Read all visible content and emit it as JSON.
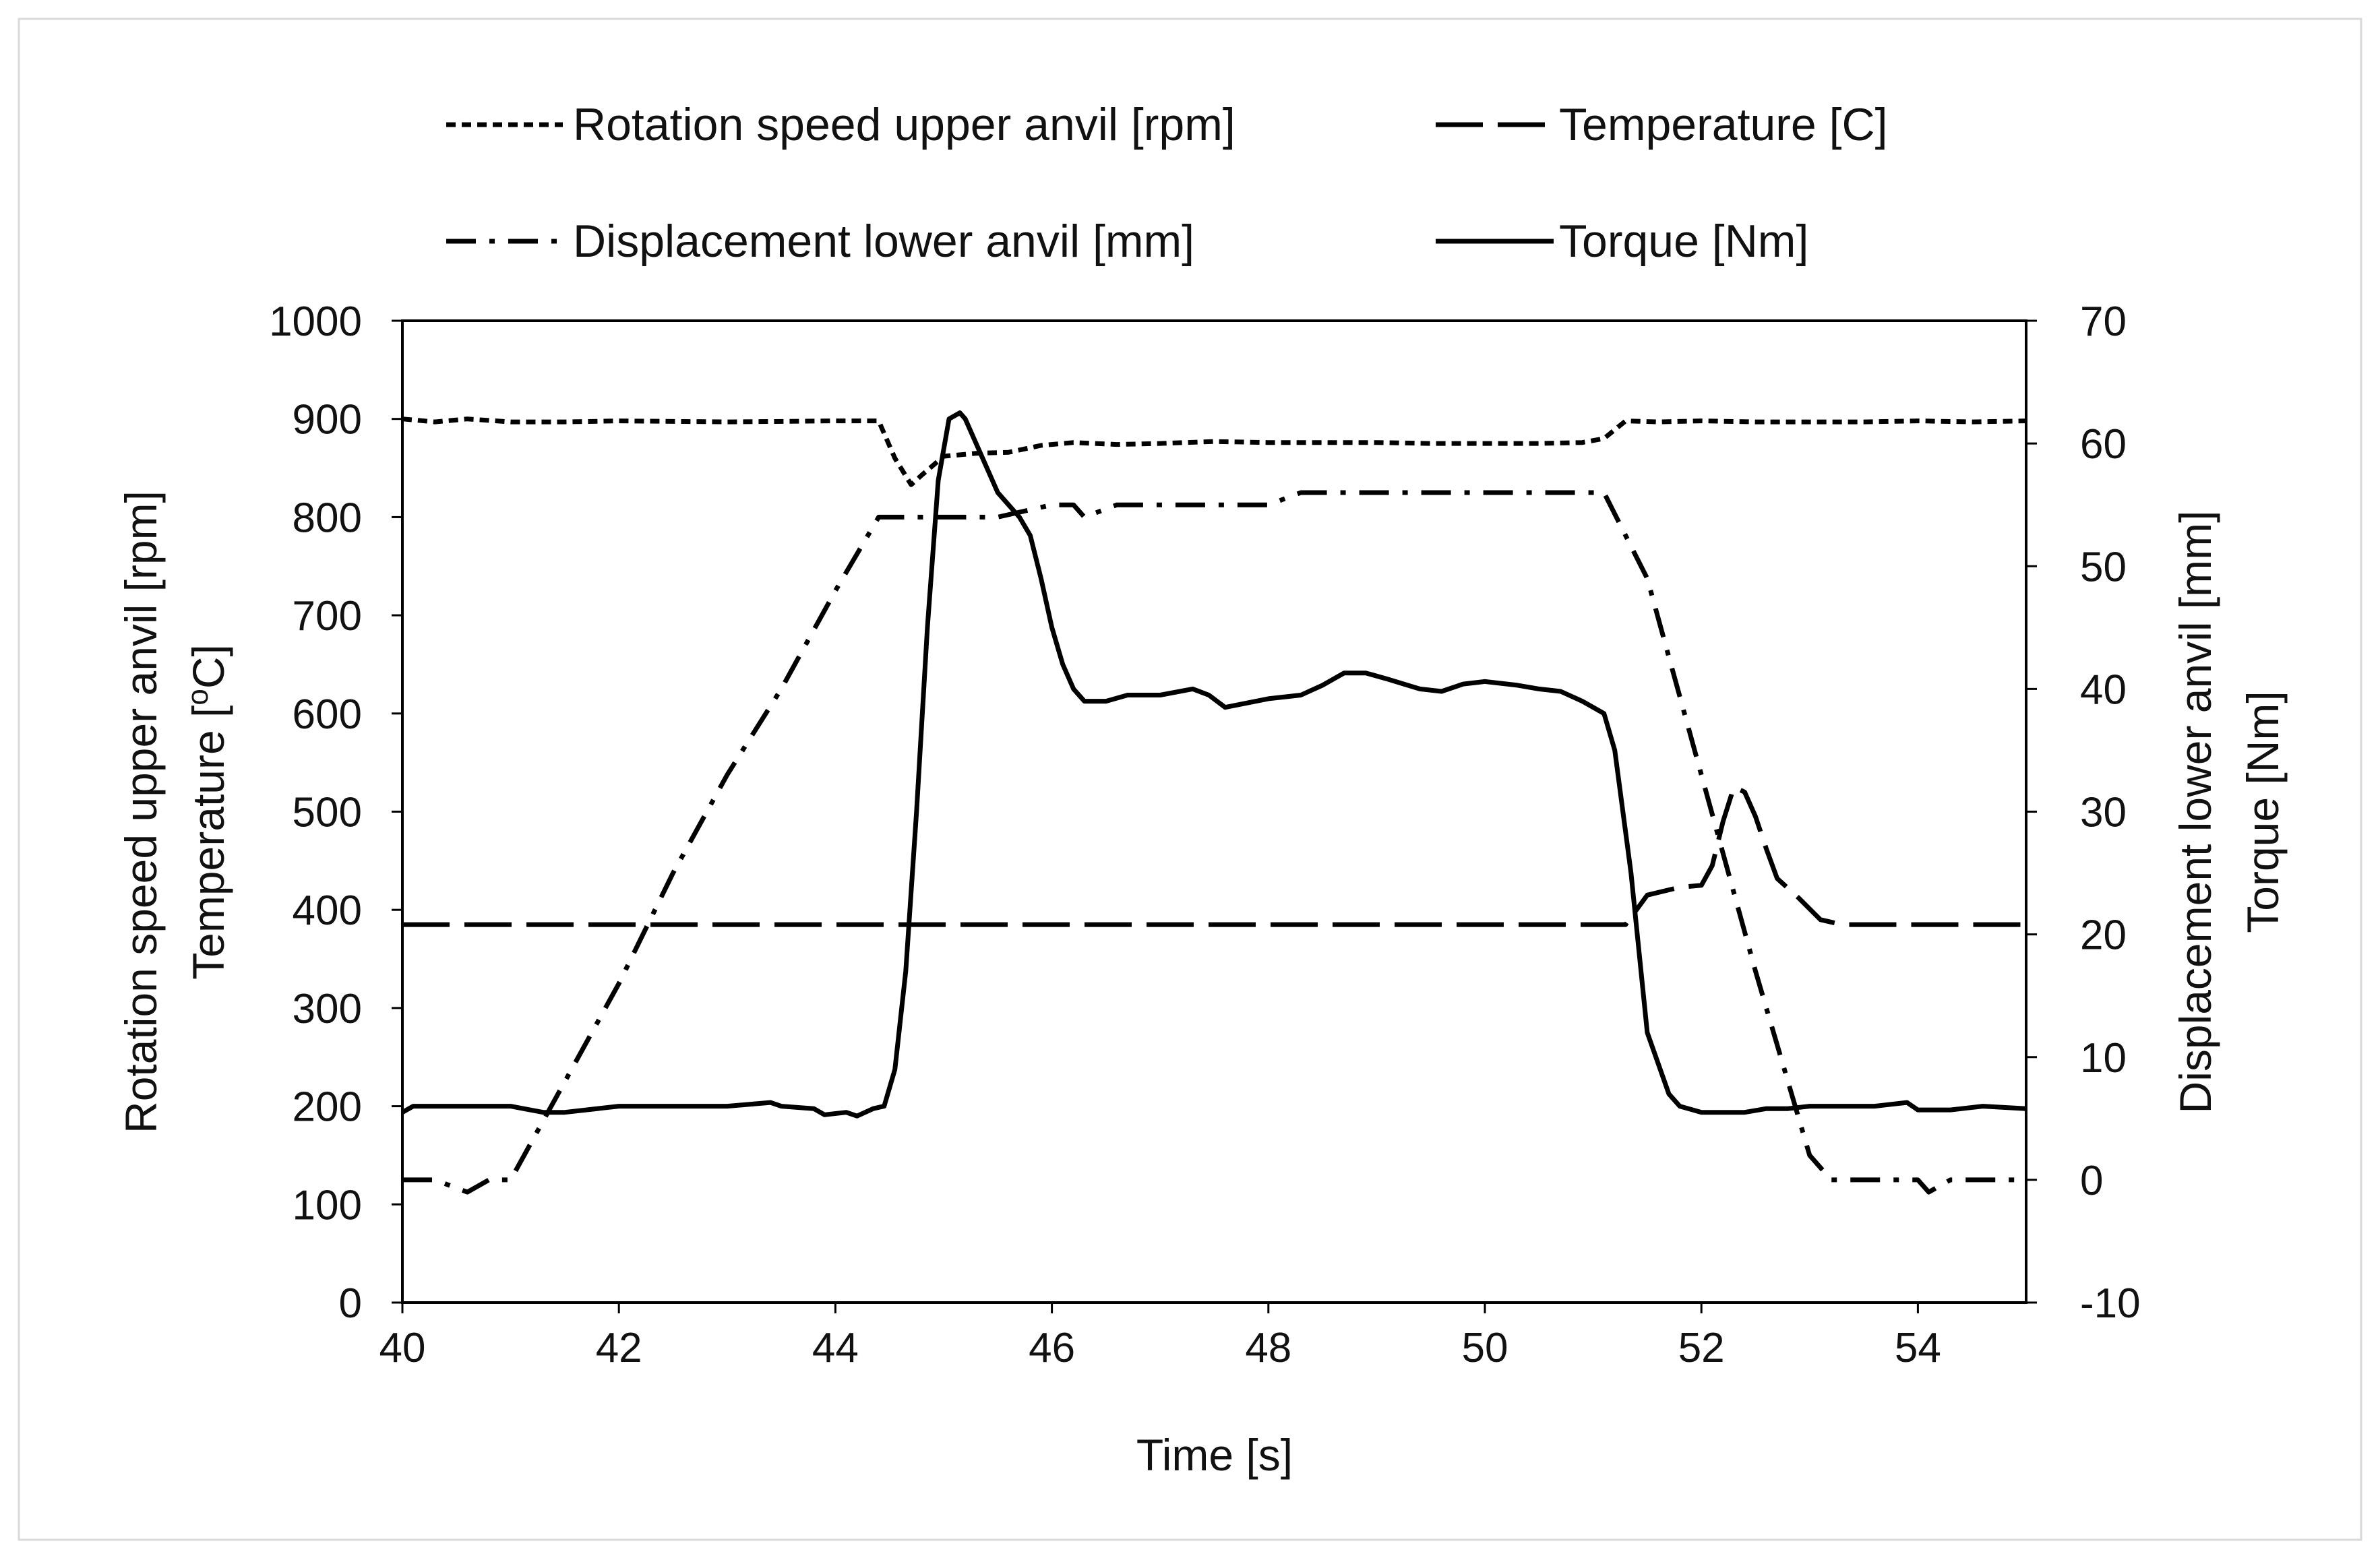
{
  "colors": {
    "ink": "#000000",
    "background": "#ffffff",
    "frame": "#d9d9d9"
  },
  "chart_data": {
    "type": "line",
    "title": "",
    "xlabel": "Time [s]",
    "ylabel_left": [
      "Rotation speed upper anvil [rpm]",
      "Temperature [°C]"
    ],
    "ylabel_left_parts": {
      "line1": "Rotation speed upper anvil [rpm]",
      "line2_prefix": "Temperature [",
      "line2_sup": "o",
      "line2_suffix": "C]"
    },
    "ylabel_right": [
      "Displacement lower anvil [mm]",
      "Torque [Nm]"
    ],
    "xlim": [
      40,
      55
    ],
    "ylim_left": [
      0,
      1000
    ],
    "ylim_right": [
      -10,
      70
    ],
    "x_ticks": [
      "40",
      "42",
      "44",
      "46",
      "48",
      "50",
      "52",
      "54"
    ],
    "y_left_ticks": [
      "0",
      "100",
      "200",
      "300",
      "400",
      "500",
      "600",
      "700",
      "800",
      "900",
      "1000"
    ],
    "y_right_ticks": [
      "-10",
      "0",
      "10",
      "20",
      "30",
      "40",
      "50",
      "60",
      "70"
    ],
    "grid": false,
    "legend_position": "top",
    "series": [
      {
        "name": "Rotation speed upper anvil [rpm]",
        "axis": "left",
        "dash": "short-dash",
        "x": [
          40,
          40.3,
          40.6,
          41,
          41.5,
          42,
          43,
          44,
          44.4,
          44.55,
          44.7,
          44.8,
          45,
          45.3,
          45.6,
          45.9,
          46.2,
          46.6,
          47,
          47.5,
          48,
          48.5,
          49,
          49.5,
          50,
          50.5,
          50.9,
          51.1,
          51.3,
          51.6,
          52,
          52.5,
          53,
          53.5,
          54,
          54.5,
          55
        ],
        "values": [
          900,
          897,
          900,
          897,
          897,
          898,
          897,
          898,
          898,
          860,
          833,
          843,
          862,
          865,
          866,
          873,
          876,
          874,
          875,
          877,
          876,
          876,
          876,
          875,
          875,
          875,
          876,
          880,
          898,
          897,
          898,
          897,
          897,
          897,
          898,
          897,
          898
        ]
      },
      {
        "name": "Temperature [C]",
        "axis": "left",
        "dash": "long-dash",
        "x": [
          40,
          44,
          46,
          48,
          50,
          51.3,
          51.5,
          51.8,
          52,
          52.1,
          52.2,
          52.3,
          52.4,
          52.5,
          52.6,
          52.7,
          52.9,
          53.1,
          53.3,
          54,
          55
        ],
        "values": [
          385,
          385,
          385,
          385,
          385,
          385,
          415,
          423,
          425,
          445,
          490,
          525,
          520,
          495,
          462,
          432,
          412,
          390,
          385,
          385,
          385
        ]
      },
      {
        "name": "Displacement lower anvil [mm]",
        "axis": "right",
        "dash": "dash-dot",
        "x": [
          40,
          40.3,
          40.6,
          40.8,
          41,
          41.5,
          42,
          42.5,
          43,
          43.5,
          44,
          44.4,
          44.6,
          45,
          45.5,
          46,
          46.2,
          46.3,
          46.6,
          47,
          48,
          48.3,
          49,
          50,
          51,
          51.1,
          51.5,
          52,
          52.5,
          53,
          53.2,
          53.5,
          54,
          54.1,
          54.3,
          55
        ],
        "values": [
          0,
          0,
          -1,
          0,
          0,
          8,
          16,
          25,
          33,
          40,
          48,
          54,
          54,
          54,
          54,
          55,
          55,
          54,
          55,
          55,
          55,
          56,
          56,
          56,
          56,
          56,
          49,
          33,
          17,
          2,
          0,
          0,
          0,
          -1,
          0,
          0
        ]
      },
      {
        "name": "Torque [Nm]",
        "axis": "right",
        "dash": "solid",
        "x": [
          40,
          40.1,
          40.5,
          41,
          41.3,
          41.5,
          42,
          43,
          43.4,
          43.5,
          43.8,
          43.9,
          44.1,
          44.2,
          44.35,
          44.45,
          44.55,
          44.65,
          44.75,
          44.85,
          44.95,
          45.05,
          45.15,
          45.2,
          45.35,
          45.5,
          45.7,
          45.8,
          45.9,
          46,
          46.1,
          46.2,
          46.3,
          46.5,
          46.7,
          47,
          47.3,
          47.45,
          47.6,
          48,
          48.3,
          48.5,
          48.7,
          48.9,
          49.1,
          49.4,
          49.6,
          49.8,
          50,
          50.3,
          50.5,
          50.7,
          50.9,
          51,
          51.1,
          51.2,
          51.35,
          51.5,
          51.7,
          51.8,
          52,
          52.2,
          52.4,
          52.6,
          52.8,
          53,
          53.3,
          53.6,
          53.9,
          54,
          54.3,
          54.6,
          55
        ],
        "values": [
          5.5,
          6,
          6,
          6,
          5.5,
          5.5,
          6,
          6,
          6.3,
          6,
          5.8,
          5.3,
          5.5,
          5.2,
          5.8,
          6,
          9,
          17,
          30,
          45,
          57,
          62,
          62.5,
          62,
          59,
          56,
          54,
          52.5,
          49,
          45,
          42,
          40,
          39,
          39,
          39.5,
          39.5,
          40,
          39.5,
          38.5,
          39.2,
          39.5,
          40.3,
          41.3,
          41.3,
          40.8,
          40,
          39.8,
          40.4,
          40.6,
          40.3,
          40,
          39.8,
          39,
          38.5,
          38,
          35,
          25,
          12,
          7,
          6,
          5.5,
          5.5,
          5.5,
          5.8,
          5.8,
          6,
          6,
          6,
          6.3,
          5.7,
          5.7,
          6,
          5.8
        ]
      }
    ]
  }
}
